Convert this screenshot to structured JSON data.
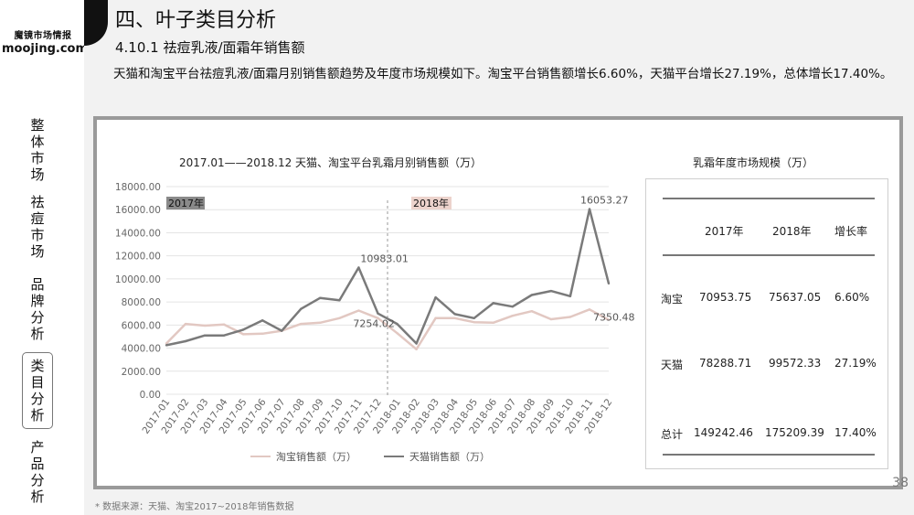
{
  "sidebar": {
    "logo_cn": "魔镜市场情报",
    "logo_en": "moojing.com",
    "nav": [
      {
        "chars": [
          "整",
          "体",
          "市",
          "场"
        ]
      },
      {
        "chars": [
          "祛",
          "痘",
          "市",
          "场"
        ]
      },
      {
        "chars": [
          "品",
          "牌",
          "分",
          "析"
        ]
      },
      {
        "chars": [
          "类",
          "目",
          "分",
          "析"
        ]
      },
      {
        "chars": [
          "产",
          "品",
          "分",
          "析"
        ]
      }
    ]
  },
  "page": {
    "title": "四、叶子类目分析",
    "subtitle": "4.10.1 祛痘乳液/面霜年销售额",
    "desc": "天猫和淘宝平台祛痘乳液/面霜月别销售额趋势及年度市场规模如下。淘宝平台销售额增长6.60%，天猫平台增长27.19%，总体增长17.40%。",
    "page_number": "38",
    "footnote": "* 数据来源：天猫、淘宝2017~2018年销售数据"
  },
  "chart_data": {
    "type": "line",
    "title": "2017.01——2018.12 天猫、淘宝平台乳霜月别销售额（万）",
    "categories": [
      "2017-01",
      "2017-02",
      "2017-03",
      "2017-04",
      "2017-05",
      "2017-06",
      "2017-07",
      "2017-08",
      "2017-09",
      "2017-10",
      "2017-11",
      "2017-12",
      "2018-01",
      "2018-02",
      "2018-03",
      "2018-04",
      "2018-05",
      "2018-06",
      "2018-07",
      "2018-08",
      "2018-09",
      "2018-10",
      "2018-11",
      "2018-12"
    ],
    "ylim": [
      0,
      18000
    ],
    "yticks": [
      "0.00",
      "2000.00",
      "4000.00",
      "6000.00",
      "8000.00",
      "10000.00",
      "12000.00",
      "14000.00",
      "16000.00",
      "18000.00"
    ],
    "ytick_values": [
      0,
      2000,
      4000,
      6000,
      8000,
      10000,
      12000,
      14000,
      16000,
      18000
    ],
    "grid": true,
    "year_tags": [
      "2017年",
      "2018年"
    ],
    "series": [
      {
        "name": "淘宝销售额（万）",
        "color": "#e2c8c2",
        "values": [
          4400,
          6100,
          5950,
          6050,
          5200,
          5250,
          5500,
          6100,
          6200,
          6600,
          7254.02,
          6600,
          5300,
          3900,
          6600,
          6600,
          6250,
          6200,
          6800,
          7200,
          6500,
          6700,
          7350.48,
          6450
        ]
      },
      {
        "name": "天猫销售额（万）",
        "color": "#7a7a7a",
        "values": [
          4250,
          4600,
          5100,
          5100,
          5600,
          6400,
          5500,
          7400,
          8350,
          8150,
          10983.01,
          7000,
          6100,
          4400,
          8400,
          6950,
          6600,
          7900,
          7600,
          8600,
          8950,
          8500,
          16053.27,
          9600
        ]
      }
    ],
    "annotations": [
      {
        "text": "10983.01",
        "series": 1,
        "index": 10
      },
      {
        "text": "7254.02",
        "series": 0,
        "index": 10
      },
      {
        "text": "16053.27",
        "series": 1,
        "index": 22
      },
      {
        "text": "7350.48",
        "series": 0,
        "index": 22
      }
    ]
  },
  "table": {
    "title": "乳霜年度市场规模（万）",
    "headers": [
      "2017年",
      "2018年",
      "增长率"
    ],
    "rows": [
      {
        "label": "淘宝",
        "v2017": "70953.75",
        "v2018": "75637.05",
        "growth": "6.60%"
      },
      {
        "label": "天猫",
        "v2017": "78288.71",
        "v2018": "99572.33",
        "growth": "27.19%"
      },
      {
        "label": "总计",
        "v2017": "149242.46",
        "v2018": "175209.39",
        "growth": "17.40%"
      }
    ]
  }
}
